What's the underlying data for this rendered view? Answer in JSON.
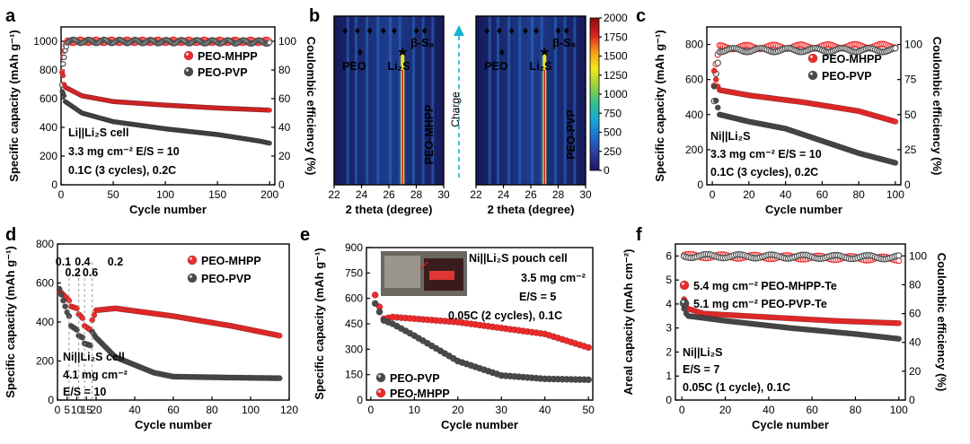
{
  "colors": {
    "red": "#ee2b2b",
    "gray": "#4a4a4a",
    "orange": "#f39a1c",
    "cyan": "#18b4d6",
    "hl_red": "#e8262a"
  },
  "chart_data": [
    {
      "id": "a",
      "panel_label": "a",
      "type": "scatter",
      "xlabel": "Cycle number",
      "ylabel": "Specific capacity (mAh g⁻¹)",
      "ylabel2": "Coulombic efficiency (%)",
      "xlim": [
        0,
        205
      ],
      "ylim": [
        0,
        1100
      ],
      "ylim2": [
        0,
        110
      ],
      "xticks": [
        0,
        50,
        100,
        150,
        200
      ],
      "yticks": [
        0,
        200,
        400,
        600,
        800,
        1000
      ],
      "yticks2": [
        0,
        20,
        40,
        60,
        80,
        100
      ],
      "annotations": [
        "Li||Li₂S cell",
        "3.3 mg cm⁻² E/S = 10",
        "0.1C (3 cycles), 0.2C"
      ],
      "legend": [
        "PEO-MHPP",
        "PEO-PVP"
      ],
      "legend_position": "top-right",
      "series": [
        {
          "name": "PEO-MHPP",
          "color": "red",
          "n": 200,
          "points": [
            [
              1,
              780
            ],
            [
              2,
              760
            ],
            [
              3,
              700
            ],
            [
              4,
              680
            ],
            [
              20,
              620
            ],
            [
              50,
              580
            ],
            [
              100,
              555
            ],
            [
              150,
              535
            ],
            [
              200,
              520
            ]
          ]
        },
        {
          "name": "PEO-PVP",
          "color": "gray",
          "n": 200,
          "points": [
            [
              1,
              650
            ],
            [
              2,
              640
            ],
            [
              3,
              620
            ],
            [
              4,
              580
            ],
            [
              20,
              500
            ],
            [
              50,
              440
            ],
            [
              100,
              390
            ],
            [
              150,
              350
            ],
            [
              190,
              305
            ],
            [
              200,
              290
            ]
          ]
        },
        {
          "name": "PEO-MHPP CE",
          "color": "red",
          "hollow": true,
          "axis": "right",
          "n": 200,
          "points": [
            [
              1,
              78
            ],
            [
              2,
              88
            ],
            [
              4,
              96
            ],
            [
              6,
              100
            ],
            [
              200,
              100
            ]
          ]
        },
        {
          "name": "PEO-PVP CE",
          "color": "gray",
          "hollow": true,
          "axis": "right",
          "n": 200,
          "points": [
            [
              1,
              70
            ],
            [
              2,
              85
            ],
            [
              4,
              95
            ],
            [
              6,
              100
            ],
            [
              200,
              99.5
            ]
          ]
        }
      ]
    },
    {
      "id": "b",
      "panel_label": "b",
      "type": "heatmap",
      "xlabel": "2 theta (degree)",
      "xlim": [
        22,
        30
      ],
      "xticks": [
        22,
        24,
        26,
        28,
        30
      ],
      "subpanels": [
        {
          "label": "PEO-MHPP",
          "markers": [
            "PEO",
            "Li₂S",
            "β-S₈"
          ]
        },
        {
          "label": "PEO-PVP",
          "markers": [
            "PEO",
            "Li₂S",
            "β-S₈"
          ]
        }
      ],
      "arrow_label": "Charge",
      "colorbar": {
        "ticks": [
          0,
          250,
          500,
          750,
          1000,
          1250,
          1500,
          1750,
          2000
        ],
        "colors": [
          "#1b1464",
          "#2c3e9a",
          "#1f6fd0",
          "#19a6d6",
          "#36c28a",
          "#9ad23a",
          "#f3e61b",
          "#f59a1b",
          "#d9201e",
          "#8a0d0d"
        ]
      }
    },
    {
      "id": "c",
      "panel_label": "c",
      "type": "scatter",
      "xlabel": "Cycle number",
      "ylabel": "Specific capacity (mAh g⁻¹)",
      "ylabel2": "Coulombic efficiency (%)",
      "xlim": [
        -3,
        103
      ],
      "ylim": [
        0,
        900
      ],
      "ylim2": [
        0,
        112.5
      ],
      "xticks": [
        0,
        20,
        40,
        60,
        80,
        100
      ],
      "yticks": [
        0,
        200,
        400,
        600,
        800
      ],
      "yticks2": [
        0,
        25,
        50,
        75,
        100
      ],
      "annotations": [
        "Ni||Li₂S",
        "3.3 mg cm⁻² E/S = 10",
        "0.1C (3 cycles), 0.2C"
      ],
      "legend": [
        "PEO-MHPP",
        "PEO-PVP"
      ],
      "legend_position": "top-right",
      "series": [
        {
          "name": "PEO-MHPP",
          "color": "red",
          "n": 100,
          "points": [
            [
              1,
              650
            ],
            [
              2,
              600
            ],
            [
              3,
              560
            ],
            [
              4,
              540
            ],
            [
              20,
              510
            ],
            [
              50,
              470
            ],
            [
              80,
              420
            ],
            [
              100,
              360
            ]
          ]
        },
        {
          "name": "PEO-PVP",
          "color": "gray",
          "n": 100,
          "points": [
            [
              1,
              560
            ],
            [
              2,
              480
            ],
            [
              3,
              440
            ],
            [
              4,
              400
            ],
            [
              20,
              360
            ],
            [
              40,
              320
            ],
            [
              60,
              250
            ],
            [
              80,
              180
            ],
            [
              100,
              125
            ]
          ]
        },
        {
          "name": "PEO-MHPP CE",
          "color": "red",
          "hollow": true,
          "axis": "right",
          "n": 100,
          "points": [
            [
              1,
              70
            ],
            [
              2,
              85
            ],
            [
              4,
              98
            ],
            [
              100,
              99
            ]
          ]
        },
        {
          "name": "PEO-PVP CE",
          "color": "gray",
          "hollow": true,
          "axis": "right",
          "n": 100,
          "points": [
            [
              1,
              60
            ],
            [
              2,
              80
            ],
            [
              4,
              96
            ],
            [
              100,
              96
            ]
          ]
        }
      ]
    },
    {
      "id": "d",
      "panel_label": "d",
      "type": "scatter",
      "xlabel": "Cycle number",
      "ylabel": "Specific capacity (mAh g⁻¹)",
      "xlim": [
        0,
        120
      ],
      "ylim": [
        0,
        800
      ],
      "xticks": [
        0,
        10,
        15,
        20,
        40,
        60,
        80,
        100,
        120
      ],
      "xtick_labels": [
        "0",
        "10",
        "15",
        "20",
        "40",
        "60",
        "80",
        "100",
        "120"
      ],
      "extra_xtick_labels": [
        [
          "5",
          5
        ]
      ],
      "yticks": [
        0,
        200,
        400,
        600,
        800
      ],
      "rate_labels": [
        [
          "0.1",
          3
        ],
        [
          "0.2",
          8
        ],
        [
          "0.4",
          13
        ],
        [
          "0.6",
          17
        ],
        [
          "0.2",
          30
        ]
      ],
      "rate_dividers": [
        6,
        11,
        14,
        18
      ],
      "annotations": [
        "Ni||Li₂S cell",
        "4.1 mg cm⁻²",
        "E/S = 10"
      ],
      "legend": [
        "PEO-MHPP",
        "PEO-PVP"
      ],
      "legend_position": "top-right",
      "series": [
        {
          "name": "PEO-MHPP",
          "color": "red",
          "n": 115,
          "points": [
            [
              1,
              560
            ],
            [
              5,
              520
            ],
            [
              6,
              510
            ],
            [
              7,
              480
            ],
            [
              10,
              470
            ],
            [
              11,
              440
            ],
            [
              13,
              420
            ],
            [
              14,
              380
            ],
            [
              17,
              360
            ],
            [
              18,
              410
            ],
            [
              20,
              460
            ],
            [
              30,
              470
            ],
            [
              60,
              430
            ],
            [
              90,
              380
            ],
            [
              115,
              330
            ]
          ]
        },
        {
          "name": "PEO-PVP",
          "color": "gray",
          "n": 115,
          "points": [
            [
              1,
              570
            ],
            [
              5,
              450
            ],
            [
              6,
              430
            ],
            [
              7,
              380
            ],
            [
              10,
              360
            ],
            [
              11,
              330
            ],
            [
              13,
              320
            ],
            [
              14,
              290
            ],
            [
              17,
              280
            ],
            [
              18,
              350
            ],
            [
              20,
              320
            ],
            [
              30,
              220
            ],
            [
              50,
              140
            ],
            [
              60,
              120
            ],
            [
              90,
              115
            ],
            [
              115,
              112
            ]
          ]
        }
      ]
    },
    {
      "id": "e",
      "panel_label": "e",
      "type": "scatter",
      "xlabel": "Cycle number",
      "ylabel": "Specific capacity (mAh g⁻¹)",
      "xlim": [
        -1,
        51
      ],
      "ylim": [
        0,
        900
      ],
      "xticks": [
        0,
        10,
        20,
        30,
        40,
        50
      ],
      "yticks": [
        0,
        150,
        300,
        450,
        600,
        750,
        900
      ],
      "annotations": [
        "Ni||Li₂S pouch cell",
        "3.5 mg cm⁻²",
        "E/S = 5",
        "0.05C (2 cycles), 0.1C"
      ],
      "legend": [
        "PEO-PVP",
        "PEO-MHPP"
      ],
      "legend_position": "bottom-left",
      "series": [
        {
          "name": "PEO-MHPP",
          "color": "red",
          "n": 50,
          "points": [
            [
              1,
              620
            ],
            [
              2,
              550
            ],
            [
              3,
              480
            ],
            [
              5,
              490
            ],
            [
              20,
              460
            ],
            [
              40,
              390
            ],
            [
              50,
              310
            ]
          ]
        },
        {
          "name": "PEO-PVP",
          "color": "gray",
          "n": 50,
          "points": [
            [
              1,
              570
            ],
            [
              2,
              520
            ],
            [
              3,
              470
            ],
            [
              5,
              450
            ],
            [
              10,
              380
            ],
            [
              20,
              230
            ],
            [
              30,
              145
            ],
            [
              40,
              125
            ],
            [
              50,
              120
            ]
          ]
        }
      ]
    },
    {
      "id": "f",
      "panel_label": "f",
      "type": "scatter",
      "xlabel": "Cycle number",
      "ylabel": "Areal capacity (mAh cm⁻²)",
      "ylabel2": "Coulombic efficiency (%)",
      "xlim": [
        -3,
        103
      ],
      "ylim": [
        0,
        6.5
      ],
      "ylim2": [
        0,
        108.3
      ],
      "xticks": [
        0,
        20,
        40,
        60,
        80,
        100
      ],
      "yticks": [
        0,
        1,
        2,
        3,
        4,
        5,
        6
      ],
      "yticks2": [
        0,
        20,
        40,
        60,
        80,
        100
      ],
      "annotations": [
        "Ni||Li₂S",
        "E/S = 7",
        "0.05C (1 cycle), 0.1C"
      ],
      "legend": [
        "5.4 mg cm⁻² PEO-MHPP-Te",
        "5.1 mg cm⁻² PEO-PVP-Te"
      ],
      "legend_position": "top-center",
      "series": [
        {
          "name": "PEO-MHPP-Te",
          "color": "red",
          "n": 100,
          "points": [
            [
              1,
              4.2
            ],
            [
              2,
              4.0
            ],
            [
              3,
              3.8
            ],
            [
              10,
              3.6
            ],
            [
              40,
              3.45
            ],
            [
              70,
              3.3
            ],
            [
              100,
              3.2
            ]
          ]
        },
        {
          "name": "PEO-PVP-Te",
          "color": "gray",
          "n": 100,
          "points": [
            [
              1,
              3.8
            ],
            [
              2,
              3.6
            ],
            [
              3,
              3.5
            ],
            [
              20,
              3.3
            ],
            [
              50,
              3.0
            ],
            [
              80,
              2.75
            ],
            [
              100,
              2.55
            ]
          ]
        },
        {
          "name": "PEO-MHPP-Te CE",
          "color": "red",
          "hollow": true,
          "axis": "right",
          "n": 100,
          "points": [
            [
              1,
              100
            ],
            [
              100,
              98
            ]
          ]
        },
        {
          "name": "PEO-PVP-Te CE",
          "color": "gray",
          "hollow": true,
          "axis": "right",
          "n": 100,
          "points": [
            [
              1,
              100
            ],
            [
              100,
              99
            ]
          ]
        }
      ]
    }
  ]
}
